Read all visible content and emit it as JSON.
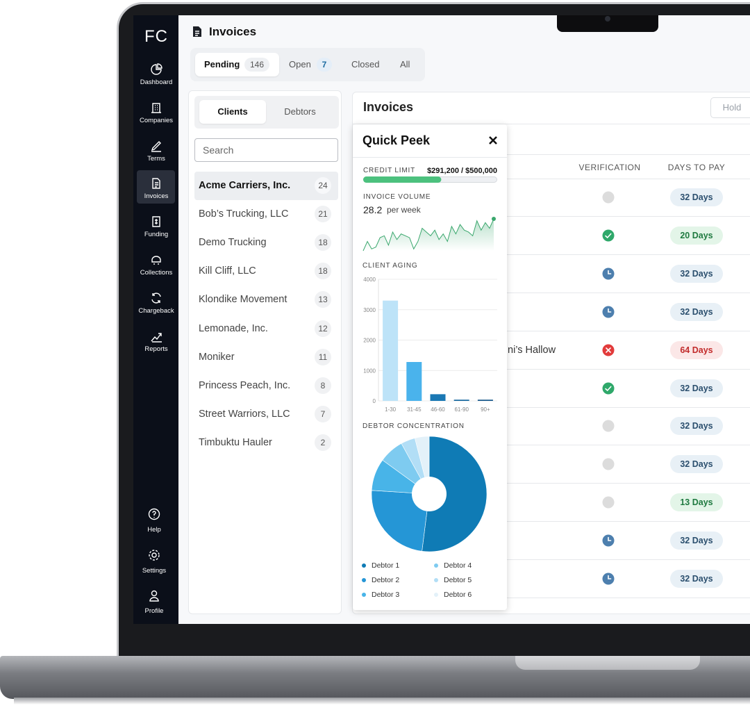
{
  "sidebar": {
    "logo": "FC",
    "nav": [
      "Dashboard",
      "Companies",
      "Terms",
      "Invoices",
      "Funding",
      "Collections",
      "Chargeback",
      "Reports"
    ],
    "active": "Invoices",
    "footer": [
      "Help",
      "Settings",
      "Profile"
    ]
  },
  "header": {
    "title": "Invoices"
  },
  "tabs": [
    {
      "label": "Pending",
      "count": 146,
      "active": true
    },
    {
      "label": "Open",
      "count": 7
    },
    {
      "label": "Closed"
    },
    {
      "label": "All"
    }
  ],
  "clients_panel": {
    "toggle": [
      "Clients",
      "Debtors"
    ],
    "active": "Clients",
    "search_placeholder": "Search",
    "clients": [
      {
        "name": "Acme Carriers, Inc.",
        "count": 24,
        "selected": true
      },
      {
        "name": "Bob’s Trucking, LLC",
        "count": 21
      },
      {
        "name": "Demo Trucking",
        "count": 18
      },
      {
        "name": "Kill Cliff, LLC",
        "count": 18
      },
      {
        "name": "Klondike Movement",
        "count": 13
      },
      {
        "name": "Lemonade, Inc.",
        "count": 12
      },
      {
        "name": "Moniker",
        "count": 11
      },
      {
        "name": "Princess Peach, Inc.",
        "count": 8
      },
      {
        "name": "Street Warriors, LLC",
        "count": 7
      },
      {
        "name": "Timbuktu Hauler",
        "count": 2
      }
    ]
  },
  "invoices_panel": {
    "title": "Invoices",
    "button": "Hold",
    "columns": [
      "VERIFICATION",
      "DAYS TO PAY"
    ],
    "rows": [
      {
        "verification": "none",
        "days_to_pay": "32 Days",
        "tone": "neutral"
      },
      {
        "verification": "approved",
        "days_to_pay": "20 Days",
        "tone": "good"
      },
      {
        "verification": "pending",
        "days_to_pay": "32 Days",
        "tone": "neutral"
      },
      {
        "verification": "pending",
        "days_to_pay": "32 Days",
        "tone": "neutral"
      },
      {
        "debtor": "ni’s Hallow",
        "verification": "rejected",
        "days_to_pay": "64 Days",
        "tone": "bad"
      },
      {
        "verification": "approved",
        "days_to_pay": "32 Days",
        "tone": "neutral"
      },
      {
        "verification": "none",
        "days_to_pay": "32 Days",
        "tone": "neutral"
      },
      {
        "verification": "none",
        "days_to_pay": "32 Days",
        "tone": "neutral"
      },
      {
        "verification": "none",
        "days_to_pay": "13 Days",
        "tone": "good"
      },
      {
        "verification": "pending",
        "days_to_pay": "32 Days",
        "tone": "neutral"
      },
      {
        "verification": "pending",
        "days_to_pay": "32 Days",
        "tone": "neutral"
      }
    ]
  },
  "quick_peek": {
    "title": "Quick Peek",
    "credit_limit": {
      "label": "CREDIT LIMIT",
      "value_label": "$291,200 / $500,000",
      "used": 291200,
      "limit": 500000,
      "color": "#4cc17e"
    },
    "invoice_volume": {
      "label": "INVOICE VOLUME",
      "value": 28.2,
      "unit": "per week",
      "type": "line",
      "color": "#3aa76d",
      "values": [
        8,
        18,
        10,
        12,
        22,
        24,
        14,
        28,
        20,
        26,
        24,
        22,
        10,
        18,
        32,
        28,
        24,
        30,
        20,
        26,
        18,
        34,
        26,
        36,
        30,
        28,
        24,
        40,
        30,
        38,
        32,
        42
      ]
    },
    "client_aging": {
      "label": "CLIENT AGING",
      "type": "bar",
      "categories": [
        "1-30",
        "31-45",
        "46-60",
        "61-90",
        "90+"
      ],
      "values": [
        3300,
        1280,
        220,
        40,
        40
      ],
      "colors": [
        "#bde3f8",
        "#4ab3ec",
        "#1a78b4",
        "#1a6aa0",
        "#1a5a8c"
      ],
      "ylim": [
        0,
        4000
      ],
      "yticks": [
        0,
        1000,
        2000,
        3000,
        4000
      ],
      "grid": true
    },
    "debtor_concentration": {
      "label": "DEBTOR CONCENTRATION",
      "type": "pie",
      "categories": [
        "Debtor 1",
        "Debtor 2",
        "Debtor 3",
        "Debtor 4",
        "Debtor 5",
        "Debtor 6"
      ],
      "values": [
        52,
        24,
        9,
        7,
        4,
        4
      ],
      "colors": [
        "#0f7bb5",
        "#2596d6",
        "#48b4e8",
        "#7ecbf0",
        "#b2def6",
        "#e3f1f9"
      ]
    }
  }
}
